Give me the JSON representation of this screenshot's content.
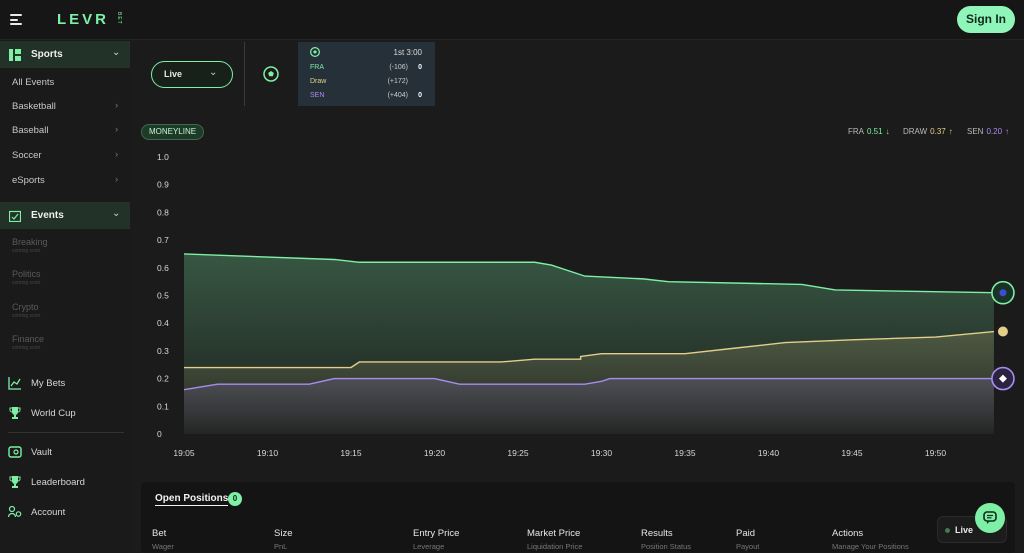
{
  "brand": {
    "name": "LEVR",
    "sub": "BET"
  },
  "header": {
    "sign_in": "Sign In"
  },
  "sidebar": {
    "sports": {
      "label": "Sports",
      "items": [
        {
          "label": "All Events",
          "arrow": false
        },
        {
          "label": "Basketball",
          "arrow": true
        },
        {
          "label": "Baseball",
          "arrow": true
        },
        {
          "label": "Soccer",
          "arrow": true
        },
        {
          "label": "eSports",
          "arrow": true
        }
      ]
    },
    "events": {
      "label": "Events",
      "items": [
        {
          "label": "Breaking",
          "note": "coming soon"
        },
        {
          "label": "Politics",
          "note": "coming soon"
        },
        {
          "label": "Crypto",
          "note": "coming soon"
        },
        {
          "label": "Finance",
          "note": "coming soon"
        }
      ]
    },
    "links": [
      {
        "label": "My Bets",
        "icon": "chart-icon"
      },
      {
        "label": "World Cup",
        "icon": "trophy-icon"
      },
      {
        "label": "Vault",
        "icon": "vault-icon"
      },
      {
        "label": "Leaderboard",
        "icon": "trophy-icon"
      },
      {
        "label": "Account",
        "icon": "account-icon"
      }
    ]
  },
  "market": {
    "filter": "Live",
    "clock": "1st 3:00",
    "teams": [
      {
        "name": "FRA",
        "odds": "(-106)",
        "score": "0",
        "color": "#7ef0a6"
      },
      {
        "name": "Draw",
        "odds": "(+172)",
        "score": "",
        "color": "#e3cf8a"
      },
      {
        "name": "SEN",
        "odds": "(+404)",
        "score": "0",
        "color": "#a98cf0"
      }
    ]
  },
  "chart_tab": "MONEYLINE",
  "legend": [
    {
      "name": "FRA",
      "value": "0.51",
      "arrow": "↓",
      "color": "#7ef0a6"
    },
    {
      "name": "DRAW",
      "value": "0.37",
      "arrow": "↑",
      "color": "#e3cf8a"
    },
    {
      "name": "SEN",
      "value": "0.20",
      "arrow": "↑",
      "color": "#a98cf0"
    }
  ],
  "chart_data": {
    "type": "area",
    "x": [
      "19:05",
      "19:10",
      "19:15",
      "19:20",
      "19:25",
      "19:30",
      "19:35",
      "19:40",
      "19:45",
      "19:50"
    ],
    "yticks": [
      "1.0",
      "0.9",
      "0.8",
      "0.7",
      "0.6",
      "0.5",
      "0.4",
      "0.3",
      "0.2",
      "0.1",
      "0"
    ],
    "ylim": [
      0,
      1.0
    ],
    "series": [
      {
        "name": "FRA",
        "color": "#7ef0a6",
        "points": [
          [
            0,
            0.65
          ],
          [
            1.8,
            0.63
          ],
          [
            2.1,
            0.62
          ],
          [
            4.2,
            0.62
          ],
          [
            4.4,
            0.61
          ],
          [
            4.8,
            0.57
          ],
          [
            5.5,
            0.56
          ],
          [
            5.8,
            0.55
          ],
          [
            7.4,
            0.54
          ],
          [
            7.8,
            0.52
          ],
          [
            9.7,
            0.51
          ]
        ]
      },
      {
        "name": "DRAW",
        "color": "#e3cf8a",
        "points": [
          [
            0,
            0.24
          ],
          [
            2.0,
            0.24
          ],
          [
            2.1,
            0.26
          ],
          [
            3.8,
            0.26
          ],
          [
            4.2,
            0.27
          ],
          [
            4.75,
            0.27
          ],
          [
            4.75,
            0.28
          ],
          [
            5.0,
            0.29
          ],
          [
            6.0,
            0.29
          ],
          [
            6.6,
            0.31
          ],
          [
            7.2,
            0.33
          ],
          [
            8.0,
            0.34
          ],
          [
            9.0,
            0.35
          ],
          [
            9.7,
            0.37
          ]
        ]
      },
      {
        "name": "SEN",
        "color": "#a98cf0",
        "points": [
          [
            0,
            0.16
          ],
          [
            0.4,
            0.18
          ],
          [
            1.5,
            0.18
          ],
          [
            1.8,
            0.2
          ],
          [
            3.0,
            0.2
          ],
          [
            3.3,
            0.18
          ],
          [
            4.8,
            0.18
          ],
          [
            5.0,
            0.19
          ],
          [
            5.1,
            0.2
          ],
          [
            9.7,
            0.2
          ]
        ]
      }
    ]
  },
  "positions": {
    "title": "Open Positions",
    "count": "0",
    "columns": [
      {
        "h": "Bet",
        "s": "Wager"
      },
      {
        "h": "Size",
        "s": "PnL"
      },
      {
        "h": "Entry Price",
        "s": "Leverage"
      },
      {
        "h": "Market Price",
        "s": "Liquidation Price"
      },
      {
        "h": "Results",
        "s": "Position Status"
      },
      {
        "h": "Paid",
        "s": "Payout"
      },
      {
        "h": "Actions",
        "s": "Manage Your Positions"
      }
    ]
  },
  "live_pill": "Live"
}
